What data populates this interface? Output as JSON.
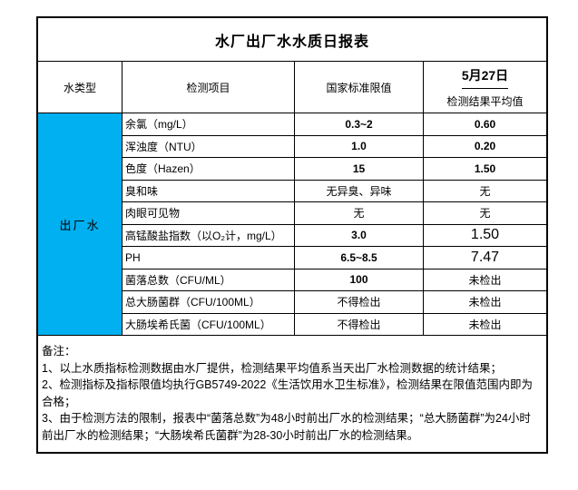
{
  "title": "水厂出厂水水质日报表",
  "colors": {
    "water_type_bg": "#00B0F0",
    "border": "#000000",
    "text": "#000000"
  },
  "header": {
    "water_type_col": "水类型",
    "item_col": "检测项目",
    "standard_col": "国家标准限值",
    "date": "5月27日",
    "result_col": "检测结果平均值"
  },
  "water_type": "出厂水",
  "rows": [
    {
      "item": "余氯（mg/L）",
      "standard": "0.3~2",
      "result": "0.60",
      "result_large": false
    },
    {
      "item": "浑浊度（NTU）",
      "standard": "1.0",
      "result": "0.20",
      "result_large": false
    },
    {
      "item": "色度（Hazen）",
      "standard": "15",
      "result": "1.50",
      "result_large": false
    },
    {
      "item": "臭和味",
      "standard": "无异臭、异味",
      "result": "无",
      "result_large": false
    },
    {
      "item": "肉眼可见物",
      "standard": "无",
      "result": "无",
      "result_large": false
    },
    {
      "item": "高锰酸盐指数（以O₂计，mg/L）",
      "standard": "3.0",
      "result": "1.50",
      "result_large": true
    },
    {
      "item": "PH",
      "standard": "6.5~8.5",
      "result": "7.47",
      "result_large": true
    },
    {
      "item": "菌落总数（CFU/ML）",
      "standard": "100",
      "result": "未检出",
      "result_large": false
    },
    {
      "item": "总大肠菌群（CFU/100ML）",
      "standard": "不得检出",
      "result": "未检出",
      "result_large": false
    },
    {
      "item": "大肠埃希氏菌（CFU/100ML）",
      "standard": "不得检出",
      "result": "未检出",
      "result_large": false
    }
  ],
  "notes": {
    "label": "备注：",
    "items": [
      "1、以上水质指标检测数据由水厂提供，检测结果平均值系当天出厂水检测数据的统计结果；",
      "2、检测指标及指标限值均执行GB5749-2022《生活饮用水卫生标准》，检测结果在限值范围内即为合格；",
      "3、由于检测方法的限制，报表中“菌落总数”为48小时前出厂水的检测结果；“总大肠菌群”为24小时前出厂水的检测结果；“大肠埃希氏菌群”为28-30小时前出厂水的检测结果。"
    ]
  }
}
